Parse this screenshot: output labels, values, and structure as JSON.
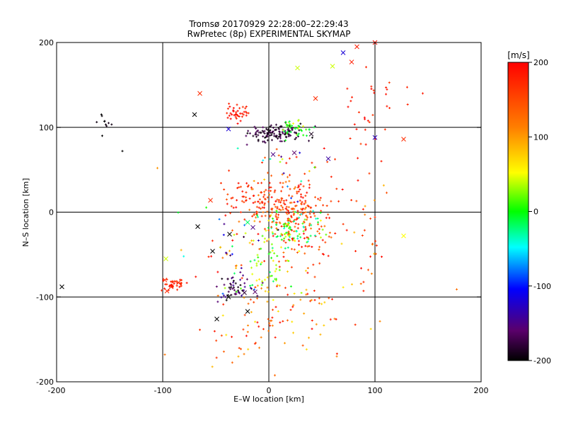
{
  "chart_data": {
    "type": "scatter",
    "title": "Tromsø 20170929 22:28:00–22:29:43",
    "subtitle": "RwPretec (8p) EXPERIMENTAL SKYMAP",
    "xlabel": "E–W location [km]",
    "ylabel": "N–S location [km]",
    "xlim": [
      -200,
      200
    ],
    "ylim": [
      -200,
      200
    ],
    "xticks": [
      -200,
      -100,
      0,
      100,
      200
    ],
    "yticks": [
      -200,
      -100,
      0,
      100,
      200
    ],
    "grid_lines": [
      -100,
      0,
      100
    ],
    "grid": true,
    "colorbar": {
      "label": "[m/s]",
      "range": [
        -200,
        200
      ],
      "ticks": [
        200,
        100,
        0,
        -100,
        -200
      ],
      "colormap": "rainbow (black-purple-blue-cyan-green-yellow-orange-red)"
    },
    "point_markers": [
      "+ (small)",
      "x (large)"
    ],
    "crosses": [
      {
        "x": 70,
        "y": 188,
        "v": -120
      },
      {
        "x": 83,
        "y": 195,
        "v": 180
      },
      {
        "x": 78,
        "y": 177,
        "v": 180
      },
      {
        "x": 100,
        "y": 200,
        "v": 190
      },
      {
        "x": 60,
        "y": 172,
        "v": 40
      },
      {
        "x": 27,
        "y": 170,
        "v": 40
      },
      {
        "x": -65,
        "y": 140,
        "v": 170
      },
      {
        "x": 44,
        "y": 134,
        "v": 170
      },
      {
        "x": -70,
        "y": 115,
        "v": -200
      },
      {
        "x": -38,
        "y": 98,
        "v": -120
      },
      {
        "x": 0,
        "y": 95,
        "v": -200
      },
      {
        "x": 18,
        "y": 102,
        "v": 10
      },
      {
        "x": 40,
        "y": 92,
        "v": -190
      },
      {
        "x": 100,
        "y": 88,
        "v": -130
      },
      {
        "x": 127,
        "y": 86,
        "v": 170
      },
      {
        "x": 4,
        "y": 68,
        "v": -150
      },
      {
        "x": 24,
        "y": 70,
        "v": -160
      },
      {
        "x": 56,
        "y": 63,
        "v": -140
      },
      {
        "x": -55,
        "y": 14,
        "v": 170
      },
      {
        "x": -67,
        "y": -17,
        "v": -200
      },
      {
        "x": -37,
        "y": -26,
        "v": -200
      },
      {
        "x": -20,
        "y": -12,
        "v": -20
      },
      {
        "x": -15,
        "y": -18,
        "v": -150
      },
      {
        "x": -53,
        "y": -46,
        "v": -200
      },
      {
        "x": -97,
        "y": -55,
        "v": 40
      },
      {
        "x": 127,
        "y": -28,
        "v": 50
      },
      {
        "x": -98,
        "y": -80,
        "v": 170
      },
      {
        "x": -85,
        "y": -83,
        "v": 170
      },
      {
        "x": -92,
        "y": -88,
        "v": 170
      },
      {
        "x": -96,
        "y": -93,
        "v": 170
      },
      {
        "x": -38,
        "y": -100,
        "v": -200
      },
      {
        "x": -23,
        "y": -95,
        "v": -180
      },
      {
        "x": -13,
        "y": -94,
        "v": -160
      },
      {
        "x": -195,
        "y": -88,
        "v": -200
      },
      {
        "x": -49,
        "y": -126,
        "v": -200
      },
      {
        "x": -20,
        "y": -117,
        "v": -200
      }
    ],
    "clusters": [
      {
        "cx": 15,
        "cy": 5,
        "sx": 20,
        "sy": 18,
        "n": 230,
        "vmin": 110,
        "vmax": 200
      },
      {
        "cx": 20,
        "cy": -20,
        "sx": 15,
        "sy": 12,
        "n": 90,
        "vmin": -50,
        "vmax": 60
      },
      {
        "cx": 40,
        "cy": -40,
        "sx": 15,
        "sy": 20,
        "n": 45,
        "vmin": 120,
        "vmax": 200
      },
      {
        "cx": 5,
        "cy": 94,
        "sx": 12,
        "sy": 5,
        "n": 120,
        "vmin": -200,
        "vmax": -160
      },
      {
        "cx": 24,
        "cy": 98,
        "sx": 8,
        "sy": 4,
        "n": 35,
        "vmin": -20,
        "vmax": 50
      },
      {
        "cx": -30,
        "cy": 117,
        "sx": 6,
        "sy": 6,
        "n": 40,
        "vmin": 170,
        "vmax": 200
      },
      {
        "cx": -90,
        "cy": -86,
        "sx": 5,
        "sy": 4,
        "n": 35,
        "vmin": 160,
        "vmax": 200
      },
      {
        "cx": -30,
        "cy": -88,
        "sx": 10,
        "sy": 7,
        "n": 50,
        "vmin": -200,
        "vmax": -140
      },
      {
        "cx": -5,
        "cy": -70,
        "sx": 15,
        "sy": 15,
        "n": 55,
        "vmin": -30,
        "vmax": 90
      },
      {
        "cx": 30,
        "cy": -110,
        "sx": 35,
        "sy": 30,
        "n": 70,
        "vmin": 50,
        "vmax": 200
      },
      {
        "cx": -20,
        "cy": -140,
        "sx": 25,
        "sy": 25,
        "n": 45,
        "vmin": 60,
        "vmax": 200
      },
      {
        "cx": 95,
        "cy": 125,
        "sx": 15,
        "sy": 20,
        "n": 30,
        "vmin": 160,
        "vmax": 200
      },
      {
        "cx": -155,
        "cy": 110,
        "sx": 4,
        "sy": 8,
        "n": 9,
        "vmin": -200,
        "vmax": -190
      },
      {
        "cx": 95,
        "cy": -40,
        "sx": 10,
        "sy": 35,
        "n": 20,
        "vmin": 80,
        "vmax": 200
      },
      {
        "cx": -25,
        "cy": 15,
        "sx": 12,
        "sy": 10,
        "n": 40,
        "vmin": 140,
        "vmax": 200
      },
      {
        "cx": -35,
        "cy": -35,
        "sx": 25,
        "sy": 25,
        "n": 40,
        "vmin": -200,
        "vmax": 200
      },
      {
        "cx": 60,
        "cy": 20,
        "sx": 25,
        "sy": 40,
        "n": 25,
        "vmin": 150,
        "vmax": 200
      },
      {
        "cx": 10,
        "cy": 50,
        "sx": 15,
        "sy": 15,
        "n": 25,
        "vmin": -200,
        "vmax": 200
      }
    ],
    "isolated_points": [
      {
        "x": 145,
        "y": 140,
        "v": 180
      },
      {
        "x": 106,
        "y": 60,
        "v": 180
      },
      {
        "x": -138,
        "y": 72,
        "v": -200
      },
      {
        "x": 177,
        "y": -91,
        "v": 120
      },
      {
        "x": -98,
        "y": -168,
        "v": 120
      },
      {
        "x": -157,
        "y": 90,
        "v": -200
      },
      {
        "x": -105,
        "y": 52,
        "v": 100
      },
      {
        "x": 64,
        "y": -170,
        "v": 110
      }
    ]
  }
}
